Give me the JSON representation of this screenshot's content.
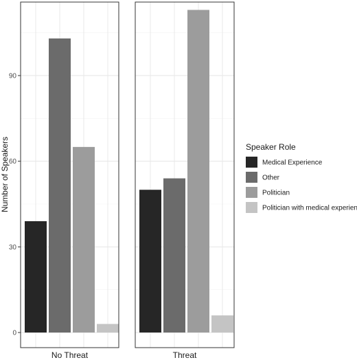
{
  "chart_data": {
    "type": "bar",
    "ylabel": "Number of Speakers",
    "ylim": [
      0,
      115
    ],
    "yticks": [
      0,
      30,
      60,
      90
    ],
    "grid": true,
    "legend_position": "right",
    "legend_title": "Speaker Role",
    "categories": [
      "No Threat",
      "Threat"
    ],
    "series": [
      {
        "name": "Medical Experience",
        "color": "#262626",
        "values": [
          39,
          50
        ]
      },
      {
        "name": "Other",
        "color": "#6b6b6b",
        "values": [
          103,
          54
        ]
      },
      {
        "name": "Politician",
        "color": "#9c9c9c",
        "values": [
          65,
          113
        ]
      },
      {
        "name": "Politician with medical experience",
        "color": "#c4c4c4",
        "values": [
          3,
          6
        ]
      }
    ]
  }
}
